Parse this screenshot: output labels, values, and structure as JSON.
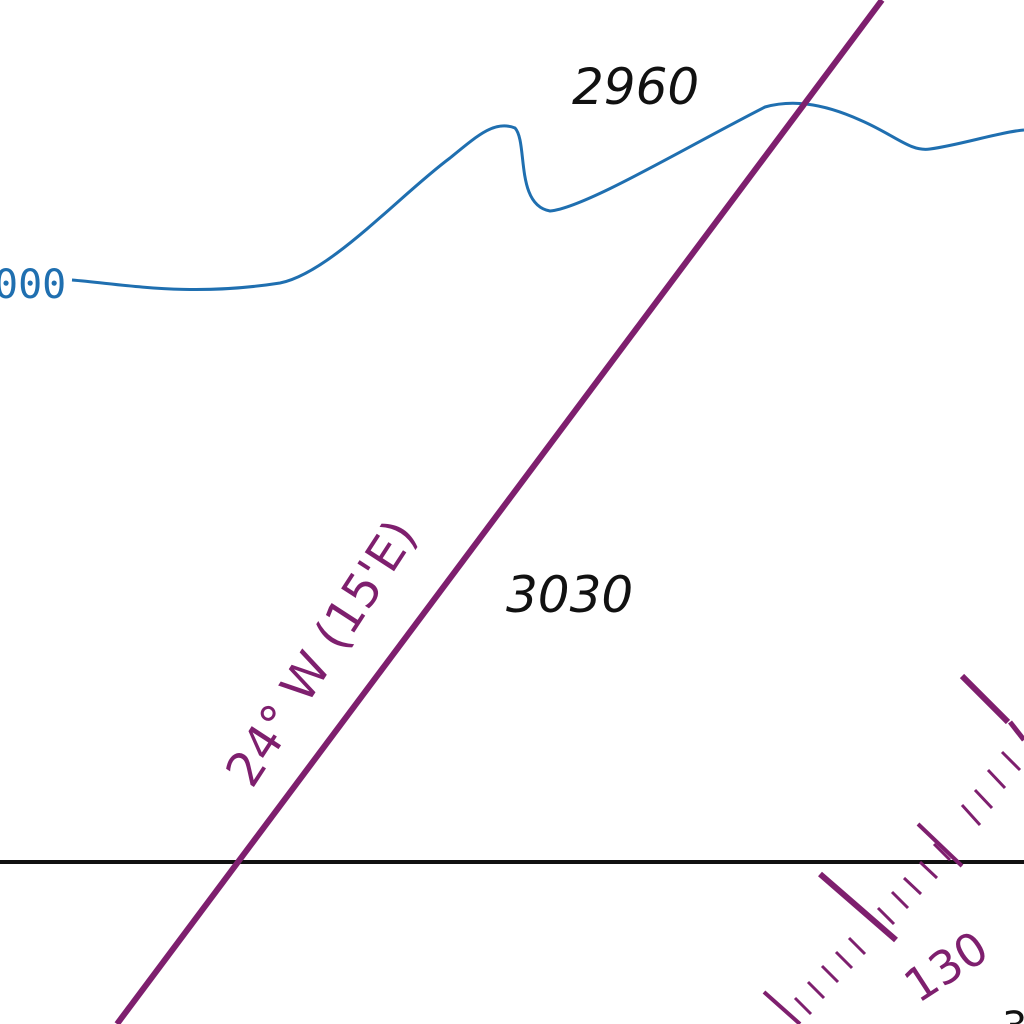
{
  "map": {
    "colors": {
      "background": "#ffffff",
      "contour": "#1f6fb0",
      "magnetic": "#7e1f6e",
      "ink": "#111111"
    },
    "soundings": [
      {
        "id": "sounding-2960",
        "value": "2960"
      },
      {
        "id": "sounding-3030",
        "value": "3030"
      }
    ],
    "contour": {
      "label": "000"
    },
    "magnetic_variation": {
      "label": "24° W (15'E)"
    },
    "compass_rose": {
      "bearing_label": "130"
    },
    "edge_label": "3"
  }
}
